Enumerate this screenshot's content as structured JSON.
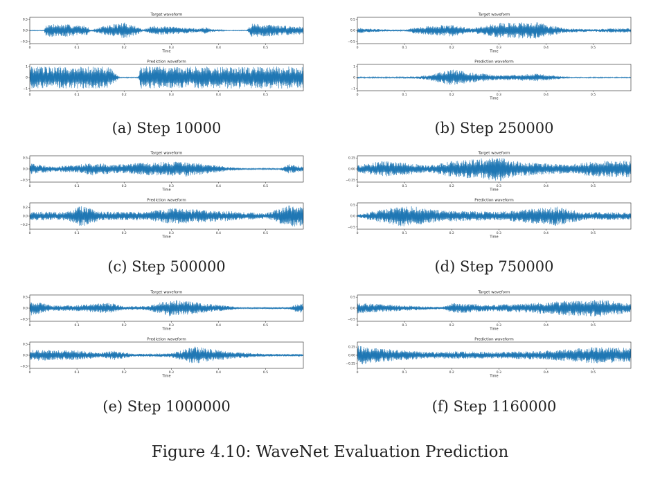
{
  "figure_caption": "Figure 4.10: WaveNet Evaluation Prediction",
  "waveform_color": "#1f77b4",
  "chart_data": [
    {
      "type": "line",
      "panel": "(a) Step 10000",
      "subplots": [
        {
          "title": "Target waveform",
          "xlabel": "Time",
          "xlim": [
            0,
            0.58
          ],
          "ylim": [
            -0.6,
            0.6
          ],
          "xticks": [
            "0",
            "0.1",
            "0.2",
            "0.3",
            "0.4",
            "0.5"
          ],
          "yticks": [
            "0.5",
            "0.0",
            "−0.5"
          ],
          "ytick_values": [
            0.5,
            0.0,
            -0.5
          ],
          "envelope": [
            [
              0.0,
              0.02
            ],
            [
              0.03,
              0.02
            ],
            [
              0.035,
              0.3
            ],
            [
              0.08,
              0.28
            ],
            [
              0.12,
              0.22
            ],
            [
              0.13,
              0.03
            ],
            [
              0.16,
              0.22
            ],
            [
              0.2,
              0.38
            ],
            [
              0.23,
              0.18
            ],
            [
              0.24,
              0.03
            ],
            [
              0.26,
              0.22
            ],
            [
              0.33,
              0.14
            ],
            [
              0.36,
              0.08
            ],
            [
              0.37,
              0.16
            ],
            [
              0.39,
              0.06
            ],
            [
              0.42,
              0.02
            ],
            [
              0.46,
              0.02
            ],
            [
              0.47,
              0.32
            ],
            [
              0.53,
              0.24
            ],
            [
              0.58,
              0.18
            ]
          ]
        },
        {
          "title": "Prediction waveform",
          "xlabel": "",
          "xlim": [
            0,
            0.58
          ],
          "ylim": [
            -1.2,
            1.2
          ],
          "xticks": [
            "0",
            "0.1",
            "0.2",
            "0.3",
            "0.4",
            "0.5"
          ],
          "yticks": [
            "1",
            "0",
            "−1"
          ],
          "ytick_values": [
            1,
            0,
            -1
          ],
          "envelope": [
            [
              0.0,
              1.0
            ],
            [
              0.17,
              1.0
            ],
            [
              0.18,
              0.5
            ],
            [
              0.19,
              0.05
            ],
            [
              0.23,
              0.05
            ],
            [
              0.235,
              1.0
            ],
            [
              0.58,
              1.0
            ]
          ]
        }
      ]
    },
    {
      "type": "line",
      "panel": "(b) Step 250000",
      "subplots": [
        {
          "title": "Target waveform",
          "xlabel": "Time",
          "xlim": [
            0,
            0.58
          ],
          "ylim": [
            -0.6,
            0.6
          ],
          "xticks": [
            "0",
            "0.1",
            "0.2",
            "0.3",
            "0.4",
            "0.5"
          ],
          "yticks": [
            "0.5",
            "0.0",
            "−0.5"
          ],
          "ytick_values": [
            0.5,
            0.0,
            -0.5
          ],
          "envelope": [
            [
              0.0,
              0.12
            ],
            [
              0.05,
              0.06
            ],
            [
              0.08,
              0.04
            ],
            [
              0.1,
              0.03
            ],
            [
              0.12,
              0.14
            ],
            [
              0.15,
              0.2
            ],
            [
              0.2,
              0.28
            ],
            [
              0.24,
              0.1
            ],
            [
              0.3,
              0.35
            ],
            [
              0.38,
              0.38
            ],
            [
              0.44,
              0.1
            ],
            [
              0.5,
              0.06
            ],
            [
              0.54,
              0.1
            ],
            [
              0.58,
              0.1
            ]
          ]
        },
        {
          "title": "Prediction waveform",
          "xlabel": "Time",
          "xlim": [
            0,
            0.58
          ],
          "ylim": [
            -1.2,
            1.2
          ],
          "xticks": [
            "0",
            "0.1",
            "0.2",
            "0.3",
            "0.4",
            "0.5"
          ],
          "yticks": [
            "1",
            "0",
            "−1"
          ],
          "ytick_values": [
            1,
            0,
            -1
          ],
          "envelope": [
            [
              0.0,
              0.06
            ],
            [
              0.1,
              0.06
            ],
            [
              0.15,
              0.2
            ],
            [
              0.2,
              0.75
            ],
            [
              0.25,
              0.45
            ],
            [
              0.3,
              0.2
            ],
            [
              0.38,
              0.35
            ],
            [
              0.45,
              0.05
            ],
            [
              0.58,
              0.05
            ]
          ]
        }
      ]
    },
    {
      "type": "line",
      "panel": "(c) Step 500000",
      "subplots": [
        {
          "title": "Target waveform",
          "xlabel": "Time",
          "xlim": [
            0,
            0.58
          ],
          "ylim": [
            -0.6,
            0.6
          ],
          "xticks": [
            "0",
            "0.1",
            "0.2",
            "0.3",
            "0.4",
            "0.5"
          ],
          "yticks": [
            "0.5",
            "0.0",
            "−0.5"
          ],
          "ytick_values": [
            0.5,
            0.0,
            -0.5
          ],
          "envelope": [
            [
              0.0,
              0.25
            ],
            [
              0.05,
              0.12
            ],
            [
              0.1,
              0.18
            ],
            [
              0.13,
              0.3
            ],
            [
              0.18,
              0.2
            ],
            [
              0.25,
              0.3
            ],
            [
              0.33,
              0.35
            ],
            [
              0.42,
              0.1
            ],
            [
              0.46,
              0.03
            ],
            [
              0.53,
              0.03
            ],
            [
              0.55,
              0.22
            ],
            [
              0.58,
              0.1
            ]
          ]
        },
        {
          "title": "Prediction waveform",
          "xlabel": "Time",
          "xlim": [
            0,
            0.58
          ],
          "ylim": [
            -0.3,
            0.3
          ],
          "xticks": [
            "0",
            "0.1",
            "0.2",
            "0.3",
            "0.4",
            "0.5"
          ],
          "yticks": [
            "0.2",
            "0.0",
            "−0.2"
          ],
          "ytick_values": [
            0.2,
            0.0,
            -0.2
          ],
          "envelope": [
            [
              0.0,
              0.1
            ],
            [
              0.08,
              0.1
            ],
            [
              0.11,
              0.25
            ],
            [
              0.15,
              0.1
            ],
            [
              0.25,
              0.1
            ],
            [
              0.3,
              0.18
            ],
            [
              0.38,
              0.14
            ],
            [
              0.5,
              0.06
            ],
            [
              0.55,
              0.25
            ],
            [
              0.58,
              0.22
            ]
          ]
        }
      ]
    },
    {
      "type": "line",
      "panel": "(d) Step 750000",
      "subplots": [
        {
          "title": "Target waveform",
          "xlabel": "Time",
          "xlim": [
            0,
            0.58
          ],
          "ylim": [
            -0.3,
            0.3
          ],
          "xticks": [
            "0",
            "0.1",
            "0.2",
            "0.3",
            "0.4",
            "0.5"
          ],
          "yticks": [
            "0.25",
            "0.00",
            "−0.25"
          ],
          "ytick_values": [
            0.25,
            0.0,
            -0.25
          ],
          "envelope": [
            [
              0.0,
              0.08
            ],
            [
              0.05,
              0.18
            ],
            [
              0.1,
              0.14
            ],
            [
              0.15,
              0.08
            ],
            [
              0.2,
              0.18
            ],
            [
              0.3,
              0.28
            ],
            [
              0.35,
              0.16
            ],
            [
              0.45,
              0.1
            ],
            [
              0.5,
              0.18
            ],
            [
              0.58,
              0.2
            ]
          ]
        },
        {
          "title": "Prediction waveform",
          "xlabel": "Time",
          "xlim": [
            0,
            0.58
          ],
          "ylim": [
            -0.6,
            0.6
          ],
          "xticks": [
            "0",
            "0.1",
            "0.2",
            "0.3",
            "0.4",
            "0.5"
          ],
          "yticks": [
            "0.5",
            "0.0",
            "−0.5"
          ],
          "ytick_values": [
            0.5,
            0.0,
            -0.5
          ],
          "envelope": [
            [
              0.0,
              0.06
            ],
            [
              0.05,
              0.3
            ],
            [
              0.1,
              0.5
            ],
            [
              0.18,
              0.25
            ],
            [
              0.25,
              0.22
            ],
            [
              0.3,
              0.2
            ],
            [
              0.42,
              0.45
            ],
            [
              0.48,
              0.18
            ],
            [
              0.58,
              0.18
            ]
          ]
        }
      ]
    },
    {
      "type": "line",
      "panel": "(e) Step 1000000",
      "subplots": [
        {
          "title": "Target waveform",
          "xlabel": "Time",
          "xlim": [
            0,
            0.58
          ],
          "ylim": [
            -0.6,
            0.6
          ],
          "xticks": [
            "0",
            "0.1",
            "0.2",
            "0.3",
            "0.4",
            "0.5"
          ],
          "yticks": [
            "0.5",
            "0.0",
            "−0.5"
          ],
          "ytick_values": [
            0.5,
            0.0,
            -0.5
          ],
          "envelope": [
            [
              0.0,
              0.35
            ],
            [
              0.05,
              0.12
            ],
            [
              0.1,
              0.14
            ],
            [
              0.17,
              0.25
            ],
            [
              0.2,
              0.08
            ],
            [
              0.25,
              0.1
            ],
            [
              0.3,
              0.4
            ],
            [
              0.38,
              0.2
            ],
            [
              0.45,
              0.03
            ],
            [
              0.55,
              0.05
            ],
            [
              0.57,
              0.22
            ],
            [
              0.58,
              0.2
            ]
          ]
        },
        {
          "title": "Prediction waveform",
          "xlabel": "Time",
          "xlim": [
            0,
            0.58
          ],
          "ylim": [
            -0.6,
            0.6
          ],
          "xticks": [
            "0",
            "0.1",
            "0.2",
            "0.3",
            "0.4",
            "0.5"
          ],
          "yticks": [
            "0.5",
            "0.0",
            "−0.5"
          ],
          "ytick_values": [
            0.5,
            0.0,
            -0.5
          ],
          "envelope": [
            [
              0.0,
              0.25
            ],
            [
              0.1,
              0.22
            ],
            [
              0.15,
              0.12
            ],
            [
              0.18,
              0.22
            ],
            [
              0.22,
              0.06
            ],
            [
              0.3,
              0.1
            ],
            [
              0.35,
              0.4
            ],
            [
              0.42,
              0.18
            ],
            [
              0.5,
              0.06
            ],
            [
              0.58,
              0.06
            ]
          ]
        }
      ]
    },
    {
      "type": "line",
      "panel": "(f) Step 1160000",
      "subplots": [
        {
          "title": "Target waveform",
          "xlabel": "Time",
          "xlim": [
            0,
            0.58
          ],
          "ylim": [
            -0.6,
            0.6
          ],
          "xticks": [
            "0",
            "0.1",
            "0.2",
            "0.3",
            "0.4",
            "0.5"
          ],
          "yticks": [
            "0.5",
            "0.0",
            "−0.5"
          ],
          "ytick_values": [
            0.5,
            0.0,
            -0.5
          ],
          "envelope": [
            [
              0.0,
              0.25
            ],
            [
              0.1,
              0.12
            ],
            [
              0.18,
              0.05
            ],
            [
              0.2,
              0.25
            ],
            [
              0.28,
              0.15
            ],
            [
              0.35,
              0.2
            ],
            [
              0.45,
              0.35
            ],
            [
              0.52,
              0.4
            ],
            [
              0.58,
              0.2
            ]
          ]
        },
        {
          "title": "Prediction waveform",
          "xlabel": "Time",
          "xlim": [
            0,
            0.58
          ],
          "ylim": [
            -0.4,
            0.4
          ],
          "xticks": [
            "0",
            "0.1",
            "0.2",
            "0.3",
            "0.4",
            "0.5"
          ],
          "yticks": [
            "0.25",
            "0.00",
            "−0.25"
          ],
          "ytick_values": [
            0.25,
            0.0,
            -0.25
          ],
          "envelope": [
            [
              0.0,
              0.3
            ],
            [
              0.05,
              0.2
            ],
            [
              0.15,
              0.1
            ],
            [
              0.2,
              0.12
            ],
            [
              0.3,
              0.1
            ],
            [
              0.4,
              0.14
            ],
            [
              0.5,
              0.25
            ],
            [
              0.58,
              0.22
            ]
          ]
        }
      ]
    }
  ]
}
